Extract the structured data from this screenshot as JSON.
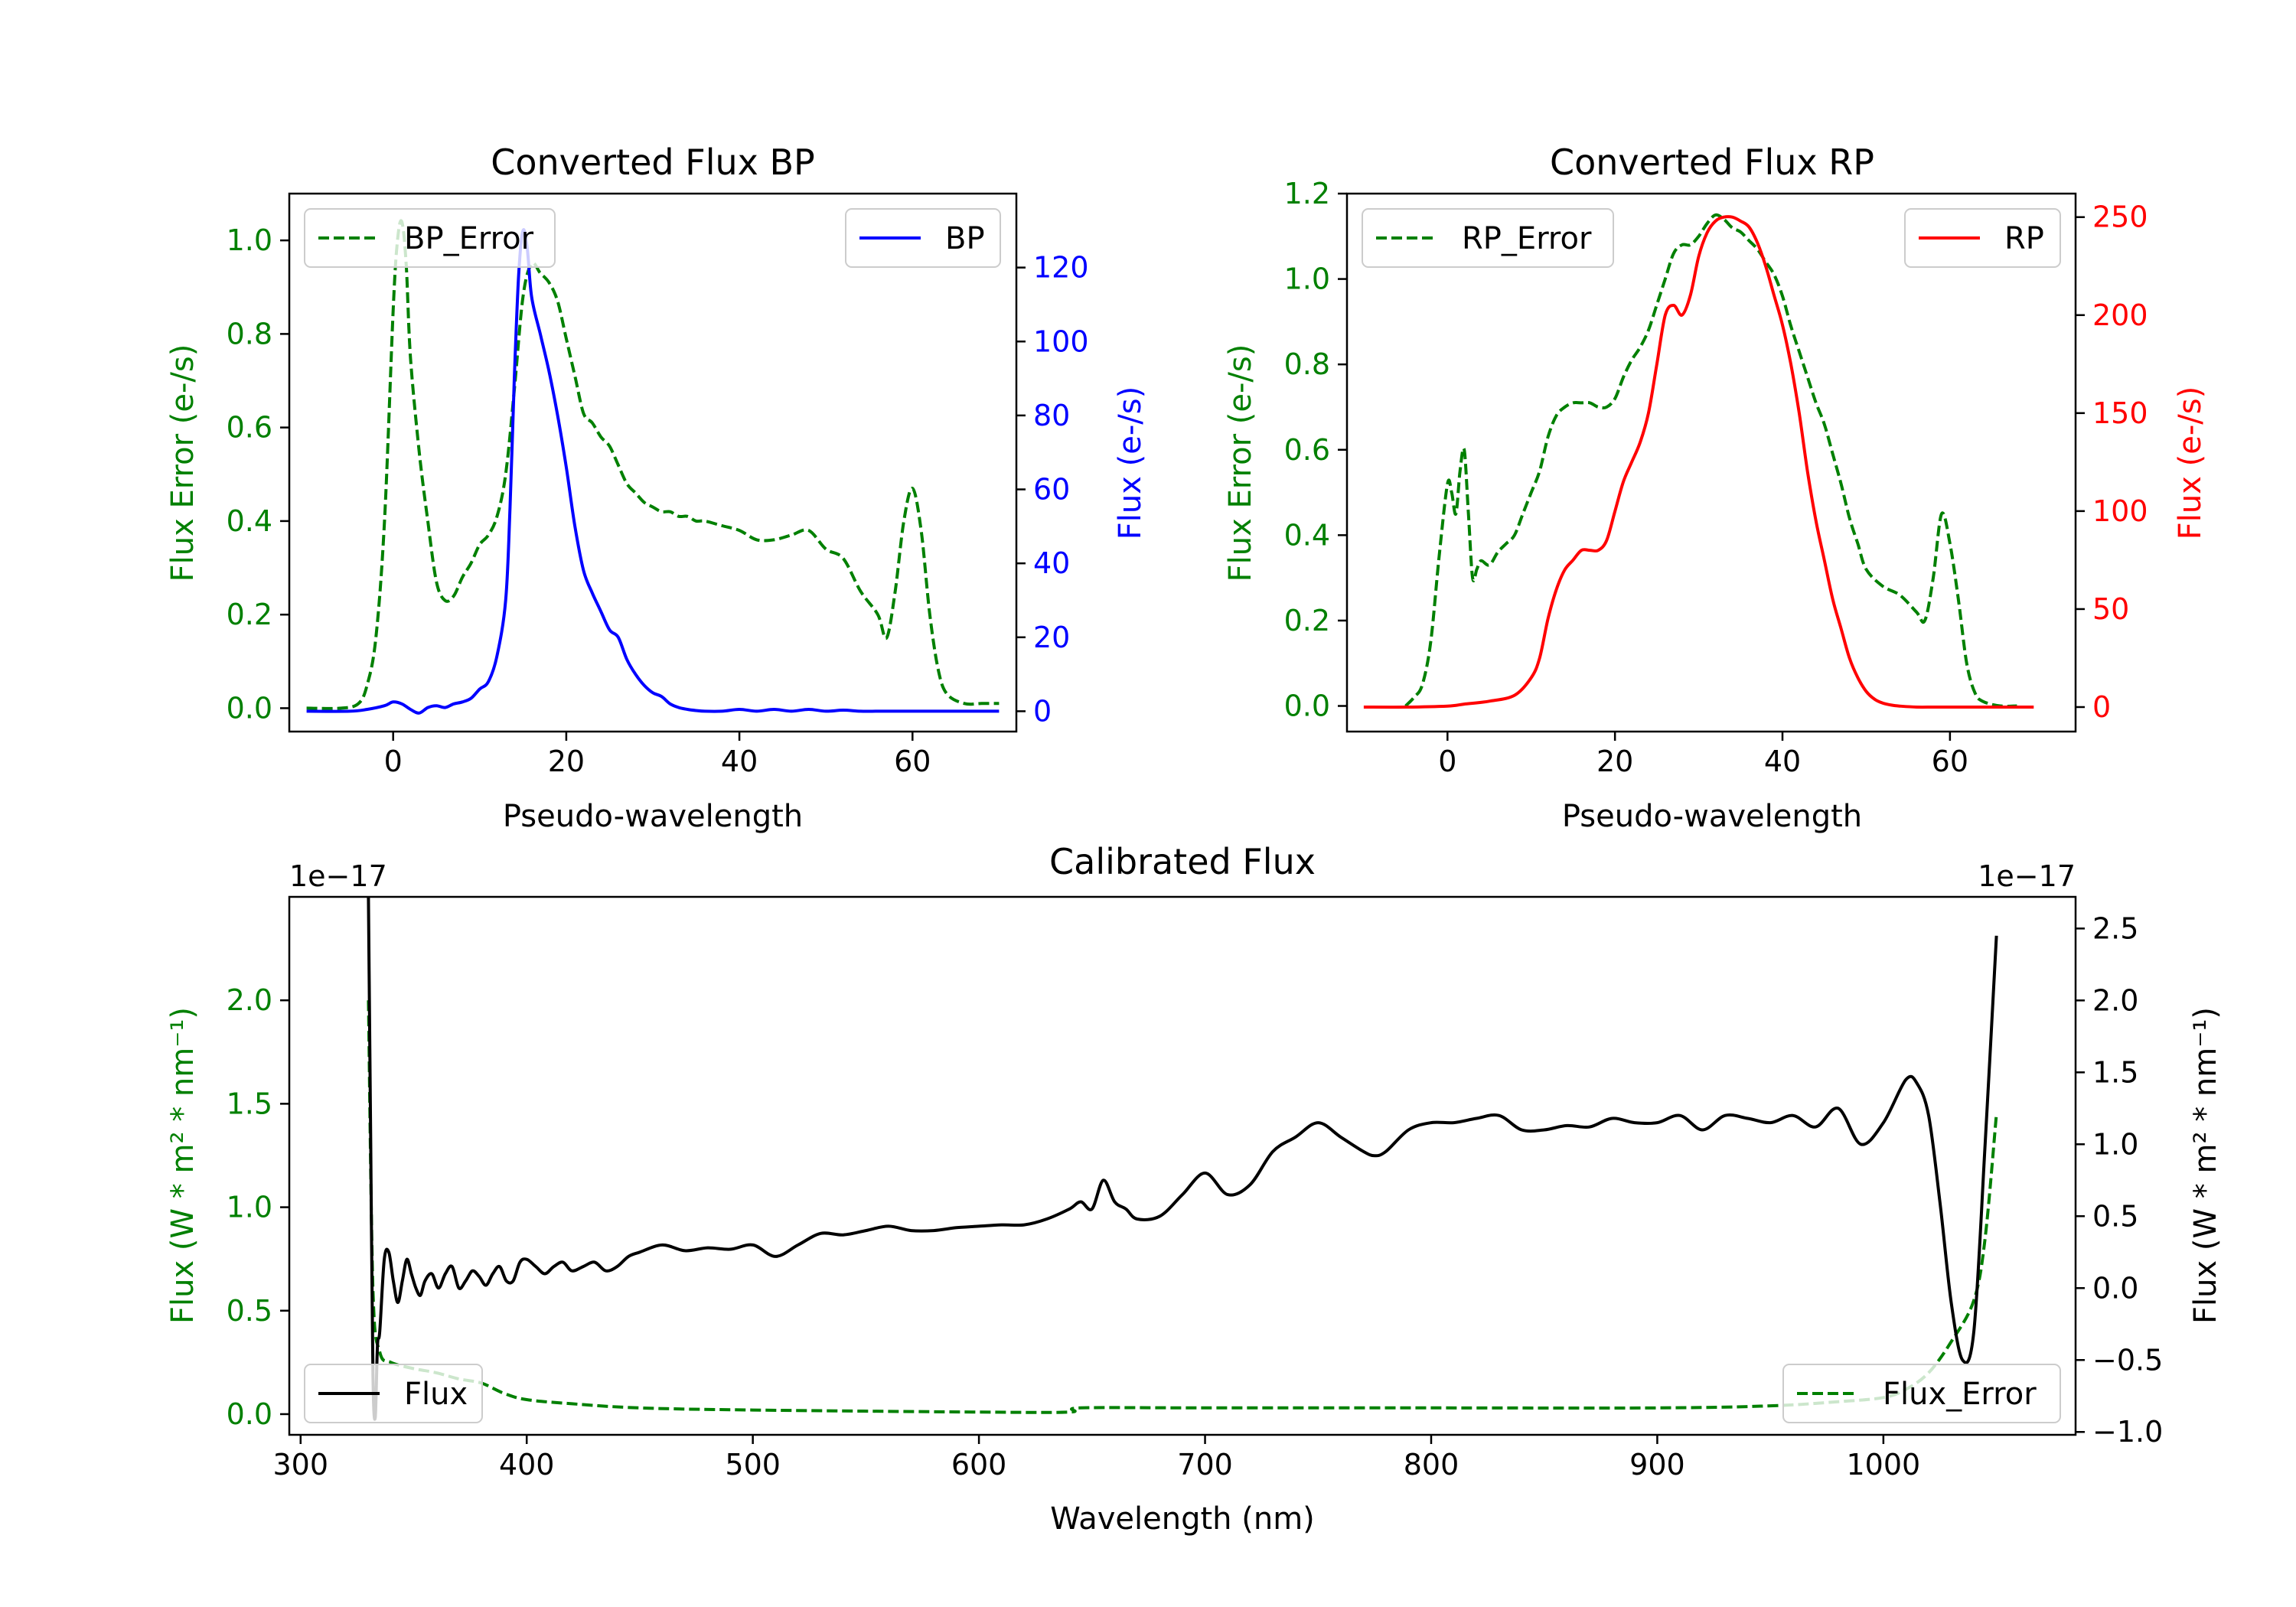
{
  "colors": {
    "error": "#008000",
    "bp": "#0000ff",
    "rp": "#ff0000",
    "flux": "#000000"
  },
  "chart_data": [
    {
      "id": "bp",
      "type": "line",
      "title": "Converted Flux BP",
      "xlabel": "Pseudo-wavelength",
      "ylabel_left": "Flux Error (e-/s)",
      "ylabel_right": "Flux (e-/s)",
      "xlim": [
        -12,
        72
      ],
      "ylim_left": [
        -0.05,
        1.1
      ],
      "ylim_right": [
        -5.5,
        140
      ],
      "xticks": [
        0,
        20,
        40,
        60
      ],
      "xtick_labels": [
        "0",
        "20",
        "40",
        "60"
      ],
      "yticks_left": [
        0.0,
        0.2,
        0.4,
        0.6,
        0.8,
        1.0
      ],
      "ytick_labels_left": [
        "0.0",
        "0.2",
        "0.4",
        "0.6",
        "0.8",
        "1.0"
      ],
      "yticks_right": [
        0,
        20,
        40,
        60,
        80,
        100,
        120
      ],
      "ytick_labels_right": [
        "0",
        "20",
        "40",
        "60",
        "80",
        "100",
        "120"
      ],
      "legend_left": "BP_Error",
      "legend_right": "BP",
      "series": [
        {
          "name": "BP_Error",
          "axis": "left",
          "style": "dashed",
          "color_key": "error",
          "x": [
            -10,
            -6,
            -4,
            -3,
            -2,
            -1,
            0,
            0.5,
            1,
            1.5,
            2,
            3,
            4,
            5,
            6,
            7,
            8,
            9,
            10,
            11,
            12,
            13,
            14,
            15,
            16,
            17,
            18,
            19,
            20,
            21,
            22,
            23,
            24,
            25,
            26,
            27,
            28,
            29,
            30,
            31,
            32,
            33,
            34,
            35,
            36,
            38,
            40,
            42,
            44,
            46,
            48,
            50,
            52,
            54,
            56,
            57,
            58,
            59,
            60,
            61,
            62,
            63,
            64,
            66,
            68,
            70
          ],
          "y": [
            0.0,
            0.0,
            0.01,
            0.05,
            0.15,
            0.4,
            0.85,
            1.0,
            1.04,
            0.95,
            0.75,
            0.55,
            0.4,
            0.27,
            0.23,
            0.24,
            0.28,
            0.31,
            0.35,
            0.37,
            0.41,
            0.5,
            0.68,
            0.88,
            0.95,
            0.93,
            0.91,
            0.87,
            0.79,
            0.71,
            0.63,
            0.61,
            0.58,
            0.56,
            0.52,
            0.48,
            0.46,
            0.44,
            0.43,
            0.42,
            0.42,
            0.41,
            0.41,
            0.4,
            0.4,
            0.39,
            0.38,
            0.36,
            0.36,
            0.37,
            0.38,
            0.34,
            0.32,
            0.25,
            0.2,
            0.15,
            0.25,
            0.4,
            0.47,
            0.38,
            0.2,
            0.08,
            0.03,
            0.01,
            0.01,
            0.01
          ]
        },
        {
          "name": "BP",
          "axis": "right",
          "style": "solid",
          "color_key": "bp",
          "x": [
            -10,
            -5,
            -3,
            -1,
            0,
            1,
            2,
            3,
            4,
            5,
            6,
            7,
            8,
            9,
            10,
            11,
            12,
            13,
            13.5,
            14,
            14.5,
            15,
            15.5,
            16,
            17,
            18,
            19,
            20,
            21,
            22,
            23,
            24,
            25,
            26,
            27,
            28,
            29,
            30,
            31,
            32,
            33,
            34,
            35,
            36,
            38,
            40,
            42,
            44,
            46,
            48,
            50,
            52,
            54,
            56,
            58,
            60,
            62,
            65,
            68,
            70
          ],
          "y": [
            0,
            0,
            0.5,
            1.5,
            2.5,
            2.0,
            0.5,
            -0.5,
            1.0,
            1.5,
            1.0,
            2.0,
            2.5,
            3.5,
            6.0,
            8.0,
            15.0,
            30.0,
            55.0,
            90.0,
            118.0,
            130.0,
            125.0,
            112.0,
            102.0,
            92.0,
            80.0,
            66.0,
            50.0,
            38.0,
            32.0,
            27.0,
            22.0,
            20.0,
            14.0,
            10.0,
            7.0,
            5.0,
            4.0,
            2.0,
            1.0,
            0.5,
            0.2,
            0.0,
            0.0,
            0.5,
            0.0,
            0.5,
            0.0,
            0.5,
            0.0,
            0.3,
            0.0,
            0.0,
            0.0,
            0.0,
            0.0,
            0.0,
            0.0,
            0.0
          ]
        }
      ]
    },
    {
      "id": "rp",
      "type": "line",
      "title": "Converted Flux RP",
      "xlabel": "Pseudo-wavelength",
      "ylabel_left": "Flux Error (e-/s)",
      "ylabel_right": "Flux (e-/s)",
      "xlim": [
        -12,
        75
      ],
      "ylim_left": [
        -0.06,
        1.2
      ],
      "ylim_right": [
        -12.5,
        262
      ],
      "xticks": [
        0,
        20,
        40,
        60
      ],
      "xtick_labels": [
        "0",
        "20",
        "40",
        "60"
      ],
      "yticks_left": [
        0.0,
        0.2,
        0.4,
        0.6,
        0.8,
        1.0,
        1.2
      ],
      "ytick_labels_left": [
        "0.0",
        "0.2",
        "0.4",
        "0.6",
        "0.8",
        "1.0",
        "1.2"
      ],
      "yticks_right": [
        0,
        50,
        100,
        150,
        200,
        250
      ],
      "ytick_labels_right": [
        "0",
        "50",
        "100",
        "150",
        "200",
        "250"
      ],
      "legend_left": "RP_Error",
      "legend_right": "RP",
      "series": [
        {
          "name": "RP_Error",
          "axis": "left",
          "style": "dashed",
          "color_key": "error",
          "x": [
            -5,
            -4,
            -3,
            -2,
            -1,
            0,
            0.5,
            1,
            1.5,
            2,
            2.5,
            3,
            3.5,
            4,
            5,
            6,
            7,
            8,
            9,
            10,
            11,
            12,
            13,
            14,
            15,
            16,
            17,
            18,
            19,
            20,
            21,
            22,
            23,
            24,
            25,
            26,
            27,
            28,
            29,
            30,
            31,
            32,
            33,
            34,
            35,
            36,
            37,
            38,
            39,
            40,
            41,
            42,
            43,
            44,
            45,
            46,
            47,
            48,
            49,
            50,
            52,
            54,
            56,
            57,
            58,
            59,
            60,
            61,
            62,
            63,
            64,
            66,
            68
          ],
          "y": [
            0.0,
            0.02,
            0.05,
            0.15,
            0.35,
            0.52,
            0.5,
            0.45,
            0.55,
            0.6,
            0.45,
            0.3,
            0.32,
            0.34,
            0.33,
            0.36,
            0.38,
            0.4,
            0.45,
            0.5,
            0.55,
            0.63,
            0.68,
            0.7,
            0.71,
            0.71,
            0.71,
            0.7,
            0.7,
            0.72,
            0.77,
            0.81,
            0.84,
            0.88,
            0.94,
            1.0,
            1.06,
            1.08,
            1.08,
            1.1,
            1.13,
            1.15,
            1.14,
            1.12,
            1.11,
            1.09,
            1.07,
            1.04,
            1.01,
            0.96,
            0.89,
            0.83,
            0.77,
            0.71,
            0.66,
            0.59,
            0.52,
            0.44,
            0.38,
            0.32,
            0.28,
            0.26,
            0.22,
            0.2,
            0.3,
            0.45,
            0.38,
            0.25,
            0.1,
            0.03,
            0.01,
            0.0,
            0.0
          ]
        },
        {
          "name": "RP",
          "axis": "right",
          "style": "solid",
          "color_key": "rp",
          "x": [
            -10,
            -5,
            0,
            2,
            5,
            8,
            10,
            11,
            12,
            13,
            14,
            15,
            16,
            17,
            18,
            19,
            20,
            21,
            22,
            23,
            24,
            25,
            26,
            27,
            28,
            29,
            30,
            31,
            32,
            33,
            34,
            35,
            36,
            37,
            38,
            39,
            40,
            41,
            42,
            43,
            44,
            45,
            46,
            47,
            48,
            49,
            50,
            51,
            52,
            53,
            54,
            56,
            58,
            60,
            65,
            70
          ],
          "y": [
            0,
            0,
            0.5,
            1.5,
            3,
            6,
            15,
            25,
            45,
            60,
            70,
            75,
            80,
            80,
            80,
            85,
            100,
            115,
            125,
            135,
            150,
            175,
            200,
            205,
            200,
            210,
            230,
            242,
            248,
            250,
            250,
            248,
            245,
            237,
            225,
            210,
            195,
            175,
            150,
            120,
            95,
            75,
            55,
            40,
            25,
            15,
            8,
            4,
            2,
            1,
            0.5,
            0,
            0,
            0,
            0,
            0
          ]
        }
      ]
    },
    {
      "id": "calibrated",
      "type": "line",
      "title": "Calibrated Flux",
      "xlabel": "Wavelength (nm)",
      "ylabel_left": "Flux (W * m² * nm⁻¹)",
      "ylabel_right": "Flux (W * m² * nm⁻¹)",
      "offset_left": "1e−17",
      "offset_right": "1e−17",
      "xlim": [
        295,
        1085
      ],
      "ylim_left": [
        -0.1,
        2.5
      ],
      "ylim_right": [
        -1.02,
        2.72
      ],
      "xticks": [
        300,
        400,
        500,
        600,
        700,
        800,
        900,
        1000
      ],
      "xtick_labels": [
        "300",
        "400",
        "500",
        "600",
        "700",
        "800",
        "900",
        "1000"
      ],
      "yticks_left": [
        0.0,
        0.5,
        1.0,
        1.5,
        2.0
      ],
      "ytick_labels_left": [
        "0.0",
        "0.5",
        "1.0",
        "1.5",
        "2.0"
      ],
      "yticks_right": [
        -1.0,
        -0.5,
        0.0,
        0.5,
        1.0,
        1.5,
        2.0,
        2.5
      ],
      "ytick_labels_right": [
        "−1.0",
        "−0.5",
        "0.0",
        "0.5",
        "1.0",
        "1.5",
        "2.0",
        "2.5"
      ],
      "legend_left": "Flux",
      "legend_right": "Flux_Error",
      "series": [
        {
          "name": "Flux_Error",
          "axis": "left",
          "style": "dashed",
          "color_key": "error",
          "x": [
            330,
            332,
            335,
            340,
            350,
            360,
            370,
            380,
            390,
            400,
            420,
            450,
            500,
            600,
            640,
            645,
            700,
            800,
            900,
            950,
            980,
            1000,
            1010,
            1020,
            1030,
            1040,
            1045,
            1050
          ],
          "y": [
            2.0,
            0.6,
            0.3,
            0.25,
            0.22,
            0.2,
            0.17,
            0.15,
            0.1,
            0.07,
            0.05,
            0.03,
            0.02,
            0.01,
            0.01,
            0.03,
            0.03,
            0.03,
            0.03,
            0.04,
            0.06,
            0.08,
            0.12,
            0.2,
            0.35,
            0.55,
            0.85,
            1.45
          ]
        },
        {
          "name": "Flux",
          "axis": "right",
          "style": "solid",
          "color_key": "flux",
          "x": [
            330,
            331,
            332,
            333,
            334,
            335,
            337,
            339,
            341,
            343,
            345,
            347,
            349,
            351,
            353,
            355,
            358,
            361,
            364,
            367,
            370,
            373,
            376,
            379,
            382,
            385,
            388,
            391,
            394,
            397,
            400,
            404,
            408,
            412,
            416,
            420,
            425,
            430,
            435,
            440,
            445,
            450,
            460,
            470,
            480,
            490,
            500,
            510,
            520,
            530,
            540,
            550,
            560,
            570,
            580,
            590,
            600,
            610,
            620,
            630,
            640,
            645,
            650,
            655,
            660,
            665,
            670,
            680,
            690,
            700,
            710,
            720,
            730,
            740,
            750,
            760,
            770,
            775,
            780,
            790,
            800,
            810,
            820,
            830,
            840,
            850,
            860,
            870,
            880,
            890,
            900,
            910,
            920,
            930,
            940,
            950,
            960,
            970,
            980,
            990,
            1000,
            1010,
            1015,
            1020,
            1025,
            1030,
            1035,
            1040,
            1045,
            1050
          ],
          "y": [
            2.72,
            1.0,
            -0.6,
            -0.9,
            -0.4,
            -0.3,
            0.2,
            0.25,
            0.05,
            -0.1,
            0.05,
            0.2,
            0.1,
            0.0,
            -0.05,
            0.05,
            0.1,
            0.0,
            0.1,
            0.15,
            0.0,
            0.05,
            0.12,
            0.08,
            0.02,
            0.1,
            0.15,
            0.05,
            0.05,
            0.18,
            0.2,
            0.15,
            0.1,
            0.15,
            0.18,
            0.12,
            0.15,
            0.18,
            0.12,
            0.15,
            0.22,
            0.25,
            0.3,
            0.26,
            0.28,
            0.27,
            0.3,
            0.22,
            0.3,
            0.38,
            0.37,
            0.4,
            0.43,
            0.4,
            0.4,
            0.42,
            0.43,
            0.44,
            0.44,
            0.48,
            0.55,
            0.6,
            0.55,
            0.75,
            0.6,
            0.55,
            0.48,
            0.5,
            0.65,
            0.8,
            0.65,
            0.72,
            0.95,
            1.05,
            1.15,
            1.05,
            0.95,
            0.92,
            0.95,
            1.1,
            1.15,
            1.15,
            1.18,
            1.2,
            1.1,
            1.1,
            1.13,
            1.12,
            1.18,
            1.15,
            1.15,
            1.2,
            1.1,
            1.2,
            1.18,
            1.15,
            1.2,
            1.12,
            1.25,
            1.0,
            1.15,
            1.45,
            1.42,
            1.2,
            0.6,
            -0.1,
            -0.5,
            -0.3,
            1.0,
            2.45
          ]
        }
      ]
    }
  ]
}
